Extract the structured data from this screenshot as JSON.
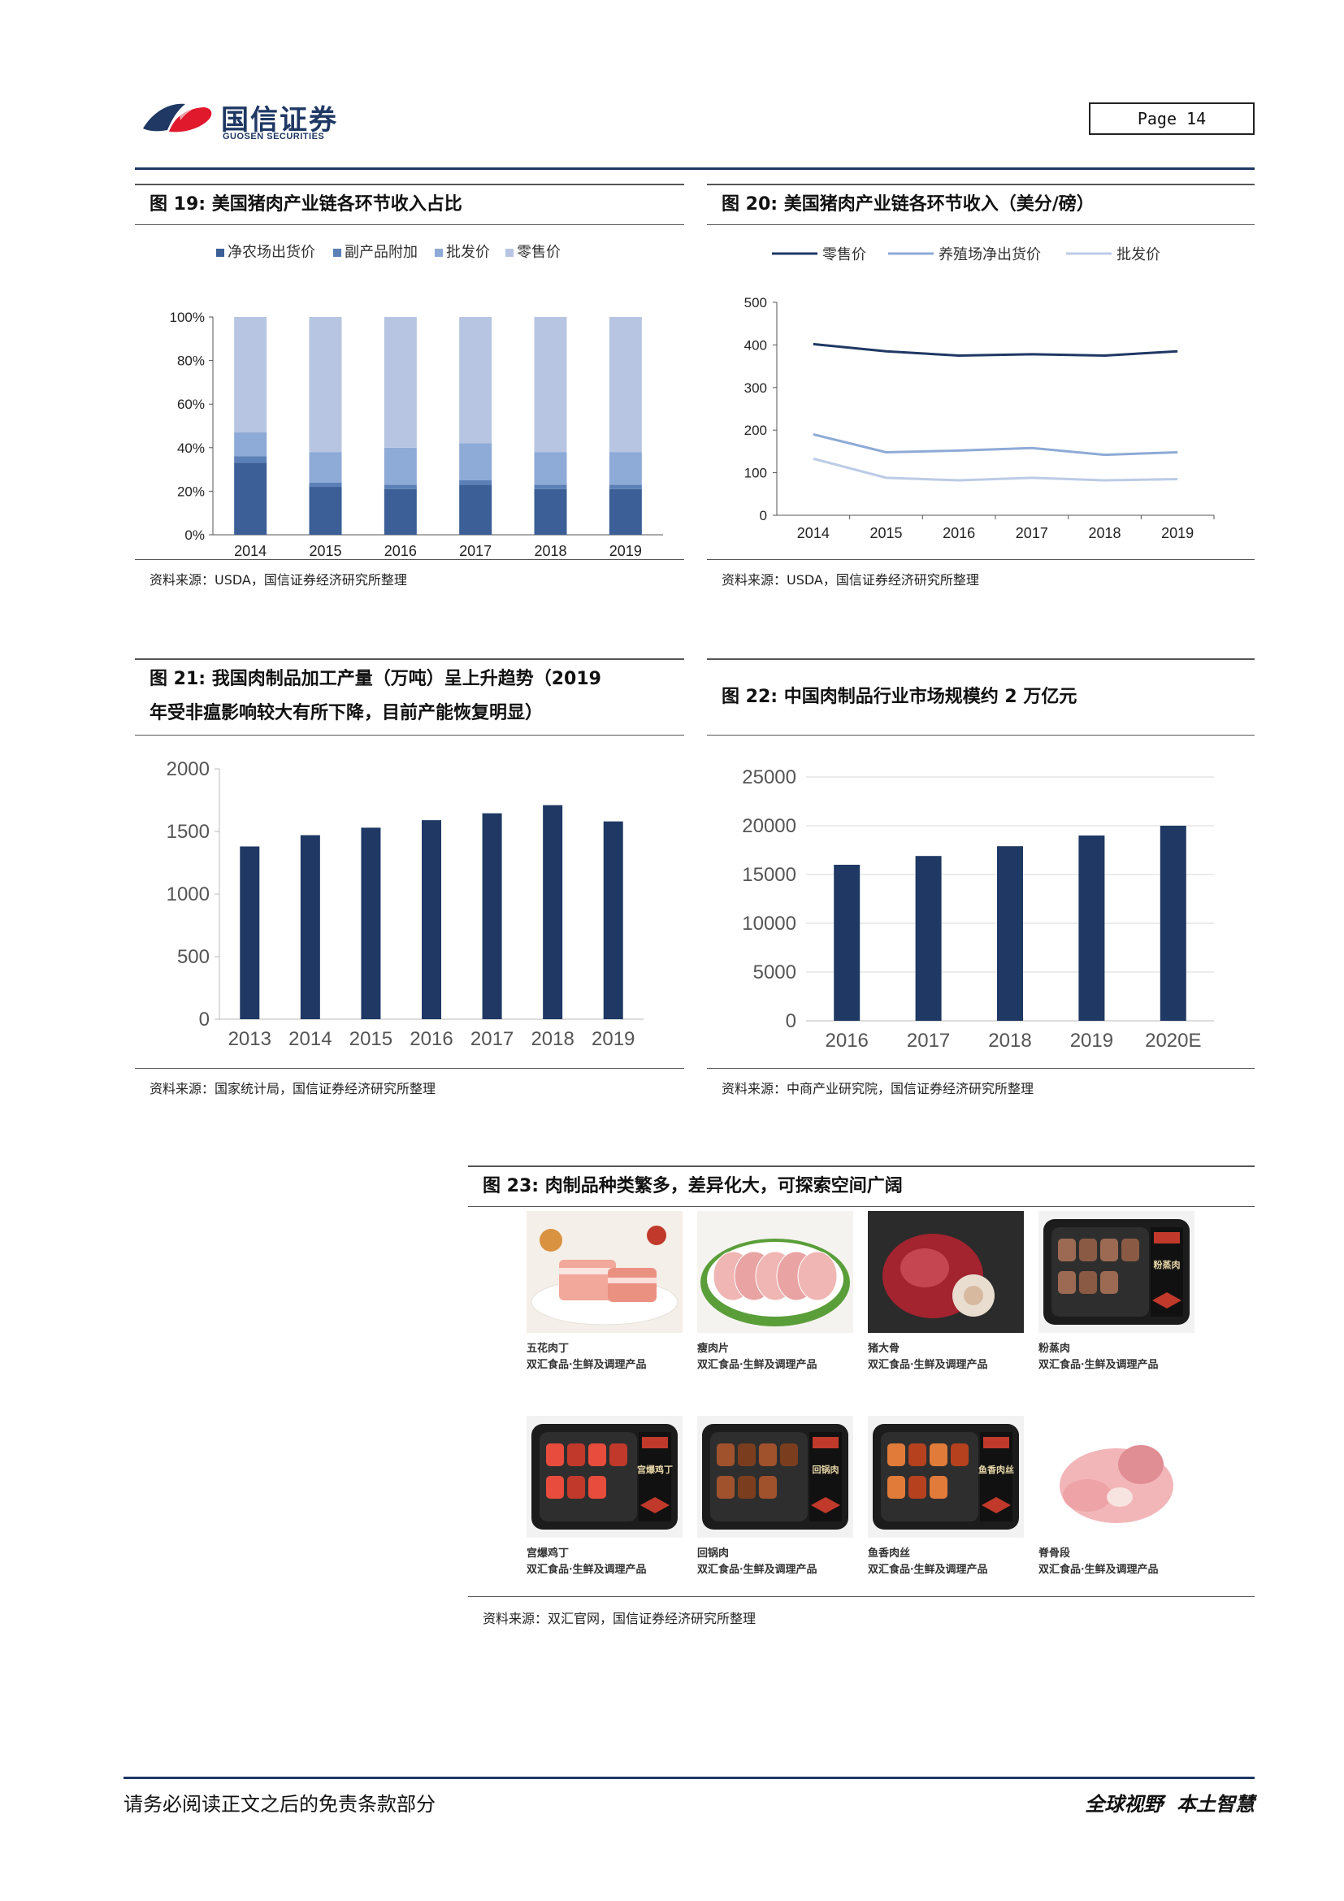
{
  "header": {
    "logo_cn": "国信证券",
    "logo_en": "GUOSEN SECURITIES",
    "page_label": "Page  14"
  },
  "fig19": {
    "title": "图 19: 美国猪肉产业链各环节收入占比",
    "source": "资料来源：USDA，国信证券经济研究所整理",
    "chart_data": {
      "type": "bar",
      "stacked": true,
      "categories": [
        "2014",
        "2015",
        "2016",
        "2017",
        "2018",
        "2019"
      ],
      "series": [
        {
          "name": "净农场出货价",
          "values": [
            33,
            22,
            21,
            23,
            21,
            21
          ],
          "color": "#3b5f96"
        },
        {
          "name": "副产品附加",
          "values": [
            3,
            2,
            2,
            2,
            2,
            2
          ],
          "color": "#5b80b7"
        },
        {
          "name": "批发价",
          "values": [
            11,
            14,
            17,
            17,
            15,
            15
          ],
          "color": "#8eaad6"
        },
        {
          "name": "零售价",
          "values": [
            53,
            62,
            60,
            58,
            62,
            62
          ],
          "color": "#b7c5e2"
        }
      ],
      "yticks": [
        "0%",
        "20%",
        "40%",
        "60%",
        "80%",
        "100%"
      ],
      "ylim": [
        0,
        100
      ],
      "legend": "top"
    }
  },
  "fig20": {
    "title": "图 20: 美国猪肉产业链各环节收入（美分/磅）",
    "source": "资料来源：USDA，国信证券经济研究所整理",
    "chart_data": {
      "type": "line",
      "categories": [
        "2014",
        "2015",
        "2016",
        "2017",
        "2018",
        "2019"
      ],
      "series": [
        {
          "name": "零售价",
          "values": [
            402,
            385,
            375,
            378,
            375,
            385
          ],
          "color": "#1f3864"
        },
        {
          "name": "养殖场净出货价",
          "values": [
            190,
            148,
            152,
            158,
            142,
            148
          ],
          "color": "#8eaad6"
        },
        {
          "name": "批发价",
          "values": [
            133,
            88,
            82,
            88,
            82,
            85
          ],
          "color": "#bccbe6"
        }
      ],
      "yticks": [
        "0",
        "100",
        "200",
        "300",
        "400",
        "500"
      ],
      "ylim": [
        0,
        500
      ],
      "legend": "top"
    }
  },
  "fig21": {
    "title_line1": "图 21: 我国肉制品加工产量（万吨）呈上升趋势（2019",
    "title_line2": "年受非瘟影响较大有所下降，目前产能恢复明显）",
    "source": "资料来源：国家统计局，国信证券经济研究所整理",
    "chart_data": {
      "type": "bar",
      "categories": [
        "2013",
        "2014",
        "2015",
        "2016",
        "2017",
        "2018",
        "2019"
      ],
      "values": [
        1380,
        1470,
        1530,
        1590,
        1645,
        1710,
        1580
      ],
      "yticks": [
        "0",
        "500",
        "1000",
        "1500",
        "2000"
      ],
      "ylim": [
        0,
        2000
      ],
      "color": "#1f3864"
    }
  },
  "fig22": {
    "title": "图 22: 中国肉制品行业市场规模约 2 万亿元",
    "source": "资料来源：中商产业研究院，国信证券经济研究所整理",
    "chart_data": {
      "type": "bar",
      "categories": [
        "2016",
        "2017",
        "2018",
        "2019",
        "2020E"
      ],
      "values": [
        16000,
        16900,
        17900,
        19000,
        20000
      ],
      "yticks": [
        "0",
        "5000",
        "10000",
        "15000",
        "20000",
        "25000"
      ],
      "ylim": [
        0,
        25000
      ],
      "grid": true,
      "color": "#1f3864"
    }
  },
  "fig23": {
    "title": "图 23: 肉制品种类繁多，差异化大，可探索空间广阔",
    "source": "资料来源：双汇官网，国信证券经济研究所整理",
    "products": [
      {
        "name": "五花肉丁",
        "sub": "双汇食品·生鲜及调理产品",
        "kind": "plate-pork"
      },
      {
        "name": "瘦肉片",
        "sub": "双汇食品·生鲜及调理产品",
        "kind": "plate-slices"
      },
      {
        "name": "猪大骨",
        "sub": "双汇食品·生鲜及调理产品",
        "kind": "bone"
      },
      {
        "name": "粉蒸肉",
        "sub": "双汇食品·生鲜及调理产品",
        "kind": "tray-dark",
        "label": "粉蒸肉"
      },
      {
        "name": "宫爆鸡丁",
        "sub": "双汇食品·生鲜及调理产品",
        "kind": "tray-red",
        "label": "宫爆鸡丁"
      },
      {
        "name": "回锅肉",
        "sub": "双汇食品·生鲜及调理产品",
        "kind": "tray-brown",
        "label": "回锅肉"
      },
      {
        "name": "鱼香肉丝",
        "sub": "双汇食品·生鲜及调理产品",
        "kind": "tray-strips",
        "label": "鱼香肉丝"
      },
      {
        "name": "脊骨段",
        "sub": "双汇食品·生鲜及调理产品",
        "kind": "ribs"
      }
    ]
  },
  "footer": {
    "left": "请务必阅读正文之后的免责条款部分",
    "right": "全球视野  本土智慧"
  }
}
